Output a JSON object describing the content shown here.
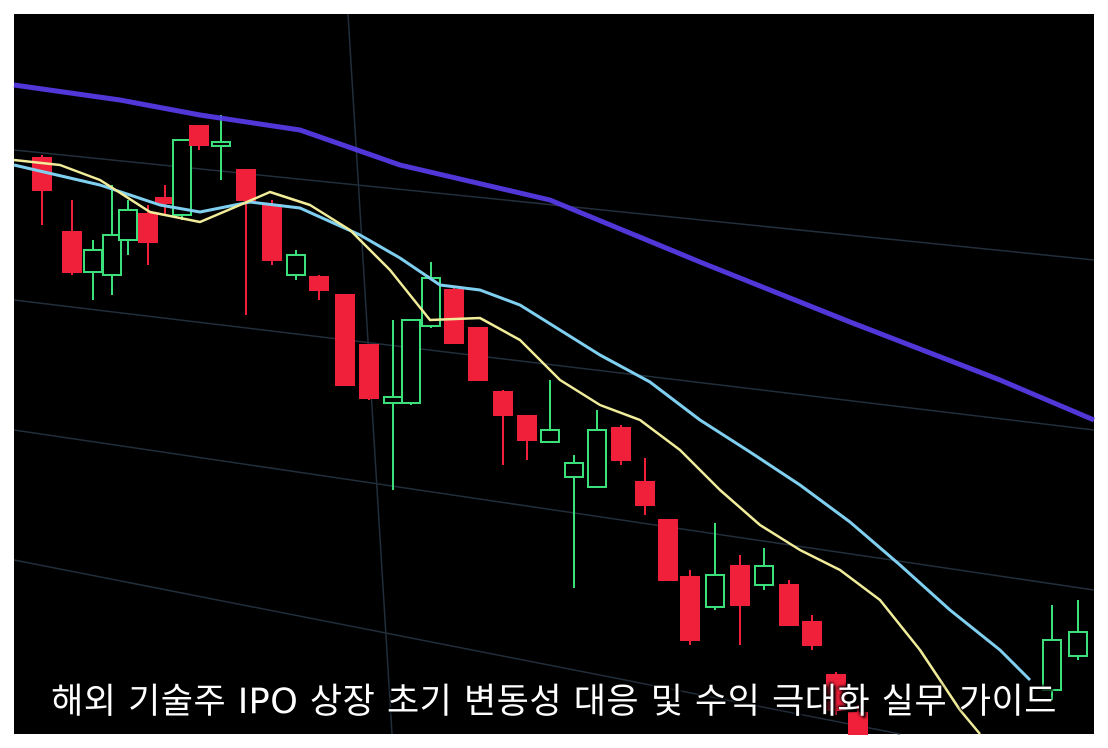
{
  "image": {
    "caption": "해외 기술주 IPO 상장 초기 변동성 대응 및 수익 극대화 실무 가이드"
  }
}
